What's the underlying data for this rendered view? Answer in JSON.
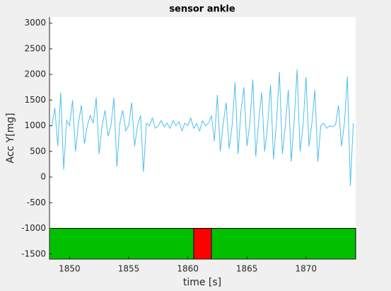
{
  "chart_data": {
    "type": "line",
    "title": "sensor ankle",
    "x_label": "time [s]",
    "y_label": "Acc Y[mg]",
    "xlim": [
      1848.3,
      1874.2
    ],
    "ylim": [
      -1600,
      3120
    ],
    "xticks": [
      1850,
      1855,
      1860,
      1865,
      1870
    ],
    "yticks": [
      -1500,
      -1000,
      -500,
      0,
      500,
      1000,
      1500,
      2000,
      2500,
      3000
    ],
    "x": [
      1848.5,
      1848.75,
      1849,
      1849.25,
      1849.5,
      1849.75,
      1850,
      1850.25,
      1850.5,
      1850.75,
      1851,
      1851.25,
      1851.5,
      1851.75,
      1852,
      1852.25,
      1852.5,
      1852.75,
      1853,
      1853.25,
      1853.5,
      1853.75,
      1854,
      1854.25,
      1854.5,
      1854.75,
      1855,
      1855.25,
      1855.5,
      1855.75,
      1856,
      1856.25,
      1856.5,
      1856.75,
      1857,
      1857.25,
      1857.5,
      1857.75,
      1858,
      1858.25,
      1858.5,
      1858.75,
      1859,
      1859.25,
      1859.5,
      1859.75,
      1860,
      1860.25,
      1860.5,
      1860.75,
      1861,
      1861.25,
      1861.5,
      1861.75,
      1862,
      1862.25,
      1862.5,
      1862.75,
      1863,
      1863.25,
      1863.5,
      1863.75,
      1864,
      1864.25,
      1864.5,
      1864.75,
      1865,
      1865.25,
      1865.5,
      1865.75,
      1866,
      1866.25,
      1866.5,
      1866.75,
      1867,
      1867.25,
      1867.5,
      1867.75,
      1868,
      1868.25,
      1868.5,
      1868.75,
      1869,
      1869.25,
      1869.5,
      1869.75,
      1870,
      1870.25,
      1870.5,
      1870.75,
      1871,
      1871.25,
      1871.5,
      1871.75,
      1872,
      1872.25,
      1872.5,
      1872.75,
      1873,
      1873.25,
      1873.5,
      1873.75,
      1874
    ],
    "series": [
      {
        "color": "#4dbeee",
        "values": [
          1000,
          1350,
          600,
          1650,
          150,
          1100,
          1000,
          1500,
          500,
          1050,
          1400,
          650,
          1000,
          1200,
          1050,
          1550,
          450,
          1000,
          1300,
          800,
          1000,
          1550,
          200,
          1050,
          1300,
          900,
          1000,
          1450,
          600,
          1000,
          1200,
          100,
          1050,
          1000,
          1150,
          950,
          1000,
          1100,
          980,
          1050,
          950,
          1100,
          1000,
          1080,
          900,
          1050,
          1000,
          1150,
          950,
          1050,
          900,
          1100,
          1000,
          1050,
          1200,
          700,
          1600,
          500,
          1050,
          1450,
          550,
          1000,
          1850,
          450,
          1300,
          1750,
          600,
          1050,
          1900,
          400,
          1100,
          1650,
          500,
          1000,
          1800,
          350,
          1050,
          2050,
          450,
          1000,
          1700,
          300,
          1100,
          2100,
          500,
          1000,
          1950,
          600,
          1050,
          1700,
          300,
          1000,
          1050,
          950,
          1000,
          980,
          1020,
          1400,
          600,
          1050,
          1960,
          -170,
          1050
        ]
      }
    ],
    "band_top": -1000,
    "bands": [
      {
        "start": 1848.3,
        "end": 1860.5,
        "color": "#00c000"
      },
      {
        "start": 1860.5,
        "end": 1862.0,
        "color": "#ff0000"
      },
      {
        "start": 1862.0,
        "end": 1874.2,
        "color": "#00c000"
      }
    ]
  }
}
